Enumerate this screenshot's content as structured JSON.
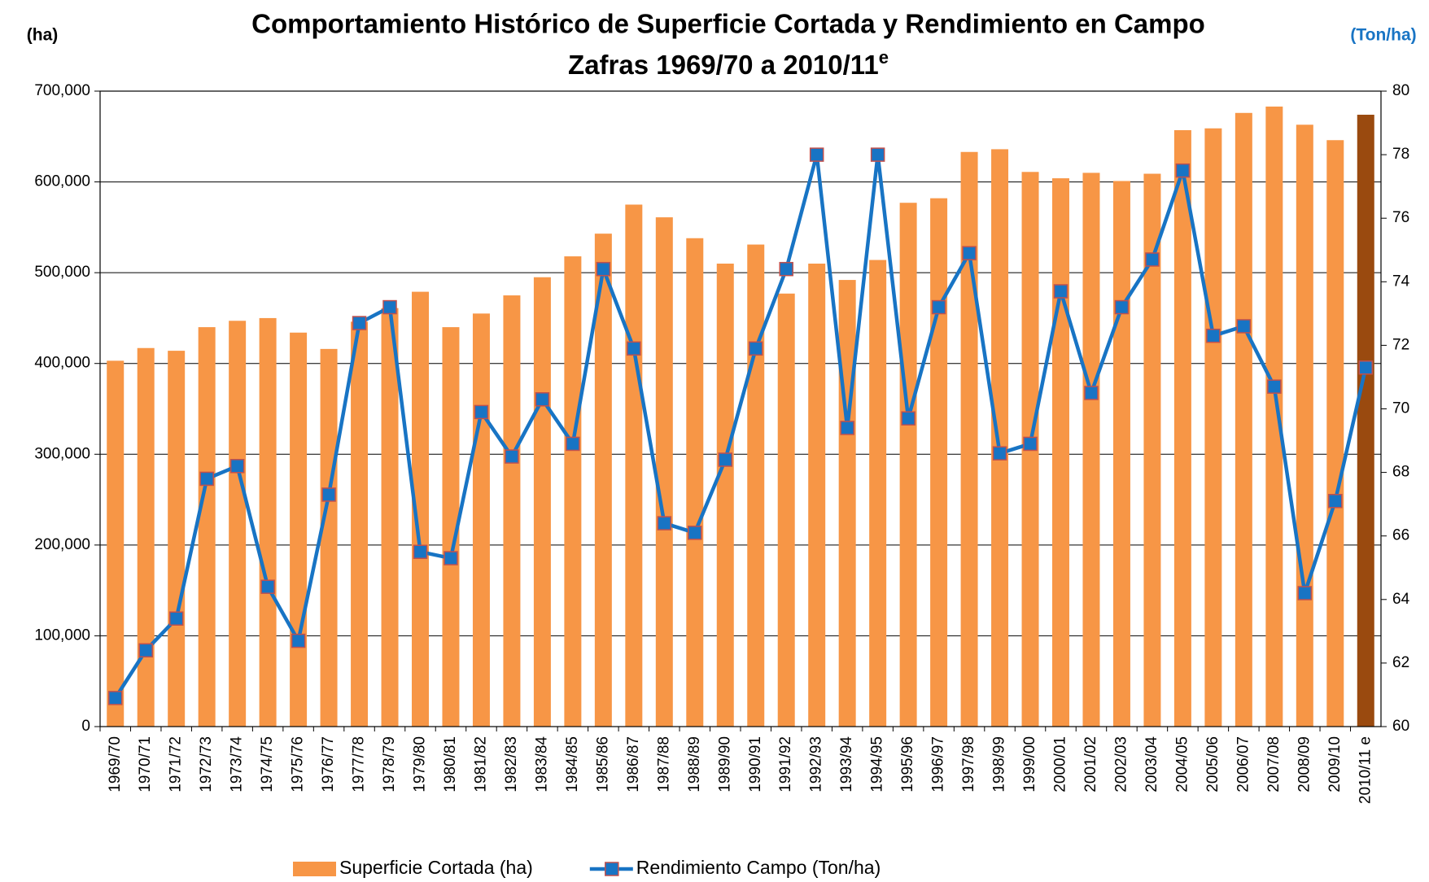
{
  "chart_data": {
    "type": "bar_line",
    "title": "Comportamiento Histórico de Superficie Cortada y Rendimiento en Campo",
    "subtitle": "Zafras 1969/70 a 2010/11",
    "subtitle_superscript": "e",
    "y_axis_label": "(ha)",
    "y2_axis_label": "(Ton/ha)",
    "categories": [
      "1969/70",
      "1970/71",
      "1971/72",
      "1972/73",
      "1973/74",
      "1974/75",
      "1975/76",
      "1976/77",
      "1977/78",
      "1978/79",
      "1979/80",
      "1980/81",
      "1981/82",
      "1982/83",
      "1983/84",
      "1984/85",
      "1985/86",
      "1986/87",
      "1987/88",
      "1988/89",
      "1989/90",
      "1990/91",
      "1991/92",
      "1992/93",
      "1993/94",
      "1994/95",
      "1995/96",
      "1996/97",
      "1997/98",
      "1998/99",
      "1999/00",
      "2000/01",
      "2001/02",
      "2002/03",
      "2003/04",
      "2004/05",
      "2005/06",
      "2006/07",
      "2007/08",
      "2008/09",
      "2009/10",
      "2010/11 e"
    ],
    "series": [
      {
        "name": "Superficie Cortada (ha)",
        "type": "bar",
        "color": "#f79646",
        "point_colors": [
          "#f79646",
          "#f79646",
          "#f79646",
          "#f79646",
          "#f79646",
          "#f79646",
          "#f79646",
          "#f79646",
          "#f79646",
          "#f79646",
          "#f79646",
          "#f79646",
          "#f79646",
          "#f79646",
          "#f79646",
          "#f79646",
          "#f79646",
          "#f79646",
          "#f79646",
          "#f79646",
          "#f79646",
          "#f79646",
          "#f79646",
          "#f79646",
          "#f79646",
          "#f79646",
          "#f79646",
          "#f79646",
          "#f79646",
          "#f79646",
          "#f79646",
          "#f79646",
          "#f79646",
          "#f79646",
          "#f79646",
          "#f79646",
          "#f79646",
          "#f79646",
          "#f79646",
          "#f79646",
          "#f79646",
          "#9a4a0f"
        ],
        "values": [
          403000,
          417000,
          414000,
          440000,
          447000,
          450000,
          434000,
          416000,
          446000,
          461000,
          479000,
          440000,
          455000,
          475000,
          495000,
          518000,
          543000,
          575000,
          561000,
          538000,
          510000,
          531000,
          477000,
          510000,
          492000,
          514000,
          577000,
          582000,
          633000,
          636000,
          611000,
          604000,
          610000,
          601000,
          609000,
          657000,
          659000,
          676000,
          683000,
          663000,
          646000,
          674000
        ]
      },
      {
        "name": "Rendimiento Campo (Ton/ha)",
        "type": "line",
        "axis": "y2",
        "color": "#1874c4",
        "marker_edge": "#c0504d",
        "values": [
          60.9,
          62.4,
          63.4,
          67.8,
          68.2,
          64.4,
          62.7,
          67.3,
          72.7,
          73.2,
          65.5,
          65.3,
          69.9,
          68.5,
          70.3,
          68.9,
          74.4,
          71.9,
          66.4,
          66.1,
          68.4,
          71.9,
          74.4,
          78.0,
          69.4,
          78.0,
          69.7,
          73.2,
          74.9,
          68.6,
          68.9,
          73.7,
          70.5,
          73.2,
          74.7,
          77.5,
          72.3,
          72.6,
          70.7,
          64.2,
          67.1,
          71.3
        ]
      }
    ],
    "ylim": [
      0,
      700000
    ],
    "yticks": [
      {
        "value": 0,
        "label": "0"
      },
      {
        "value": 100000,
        "label": "100,000"
      },
      {
        "value": 200000,
        "label": "200,000"
      },
      {
        "value": 300000,
        "label": "300,000"
      },
      {
        "value": 400000,
        "label": "400,000"
      },
      {
        "value": 500000,
        "label": "500,000"
      },
      {
        "value": 600000,
        "label": "600,000"
      },
      {
        "value": 700000,
        "label": "700,000"
      }
    ],
    "y2lim": [
      60,
      80
    ],
    "y2ticks": [
      60,
      62,
      64,
      66,
      68,
      70,
      72,
      74,
      76,
      78,
      80
    ],
    "grid": true,
    "legend": "bottom"
  }
}
